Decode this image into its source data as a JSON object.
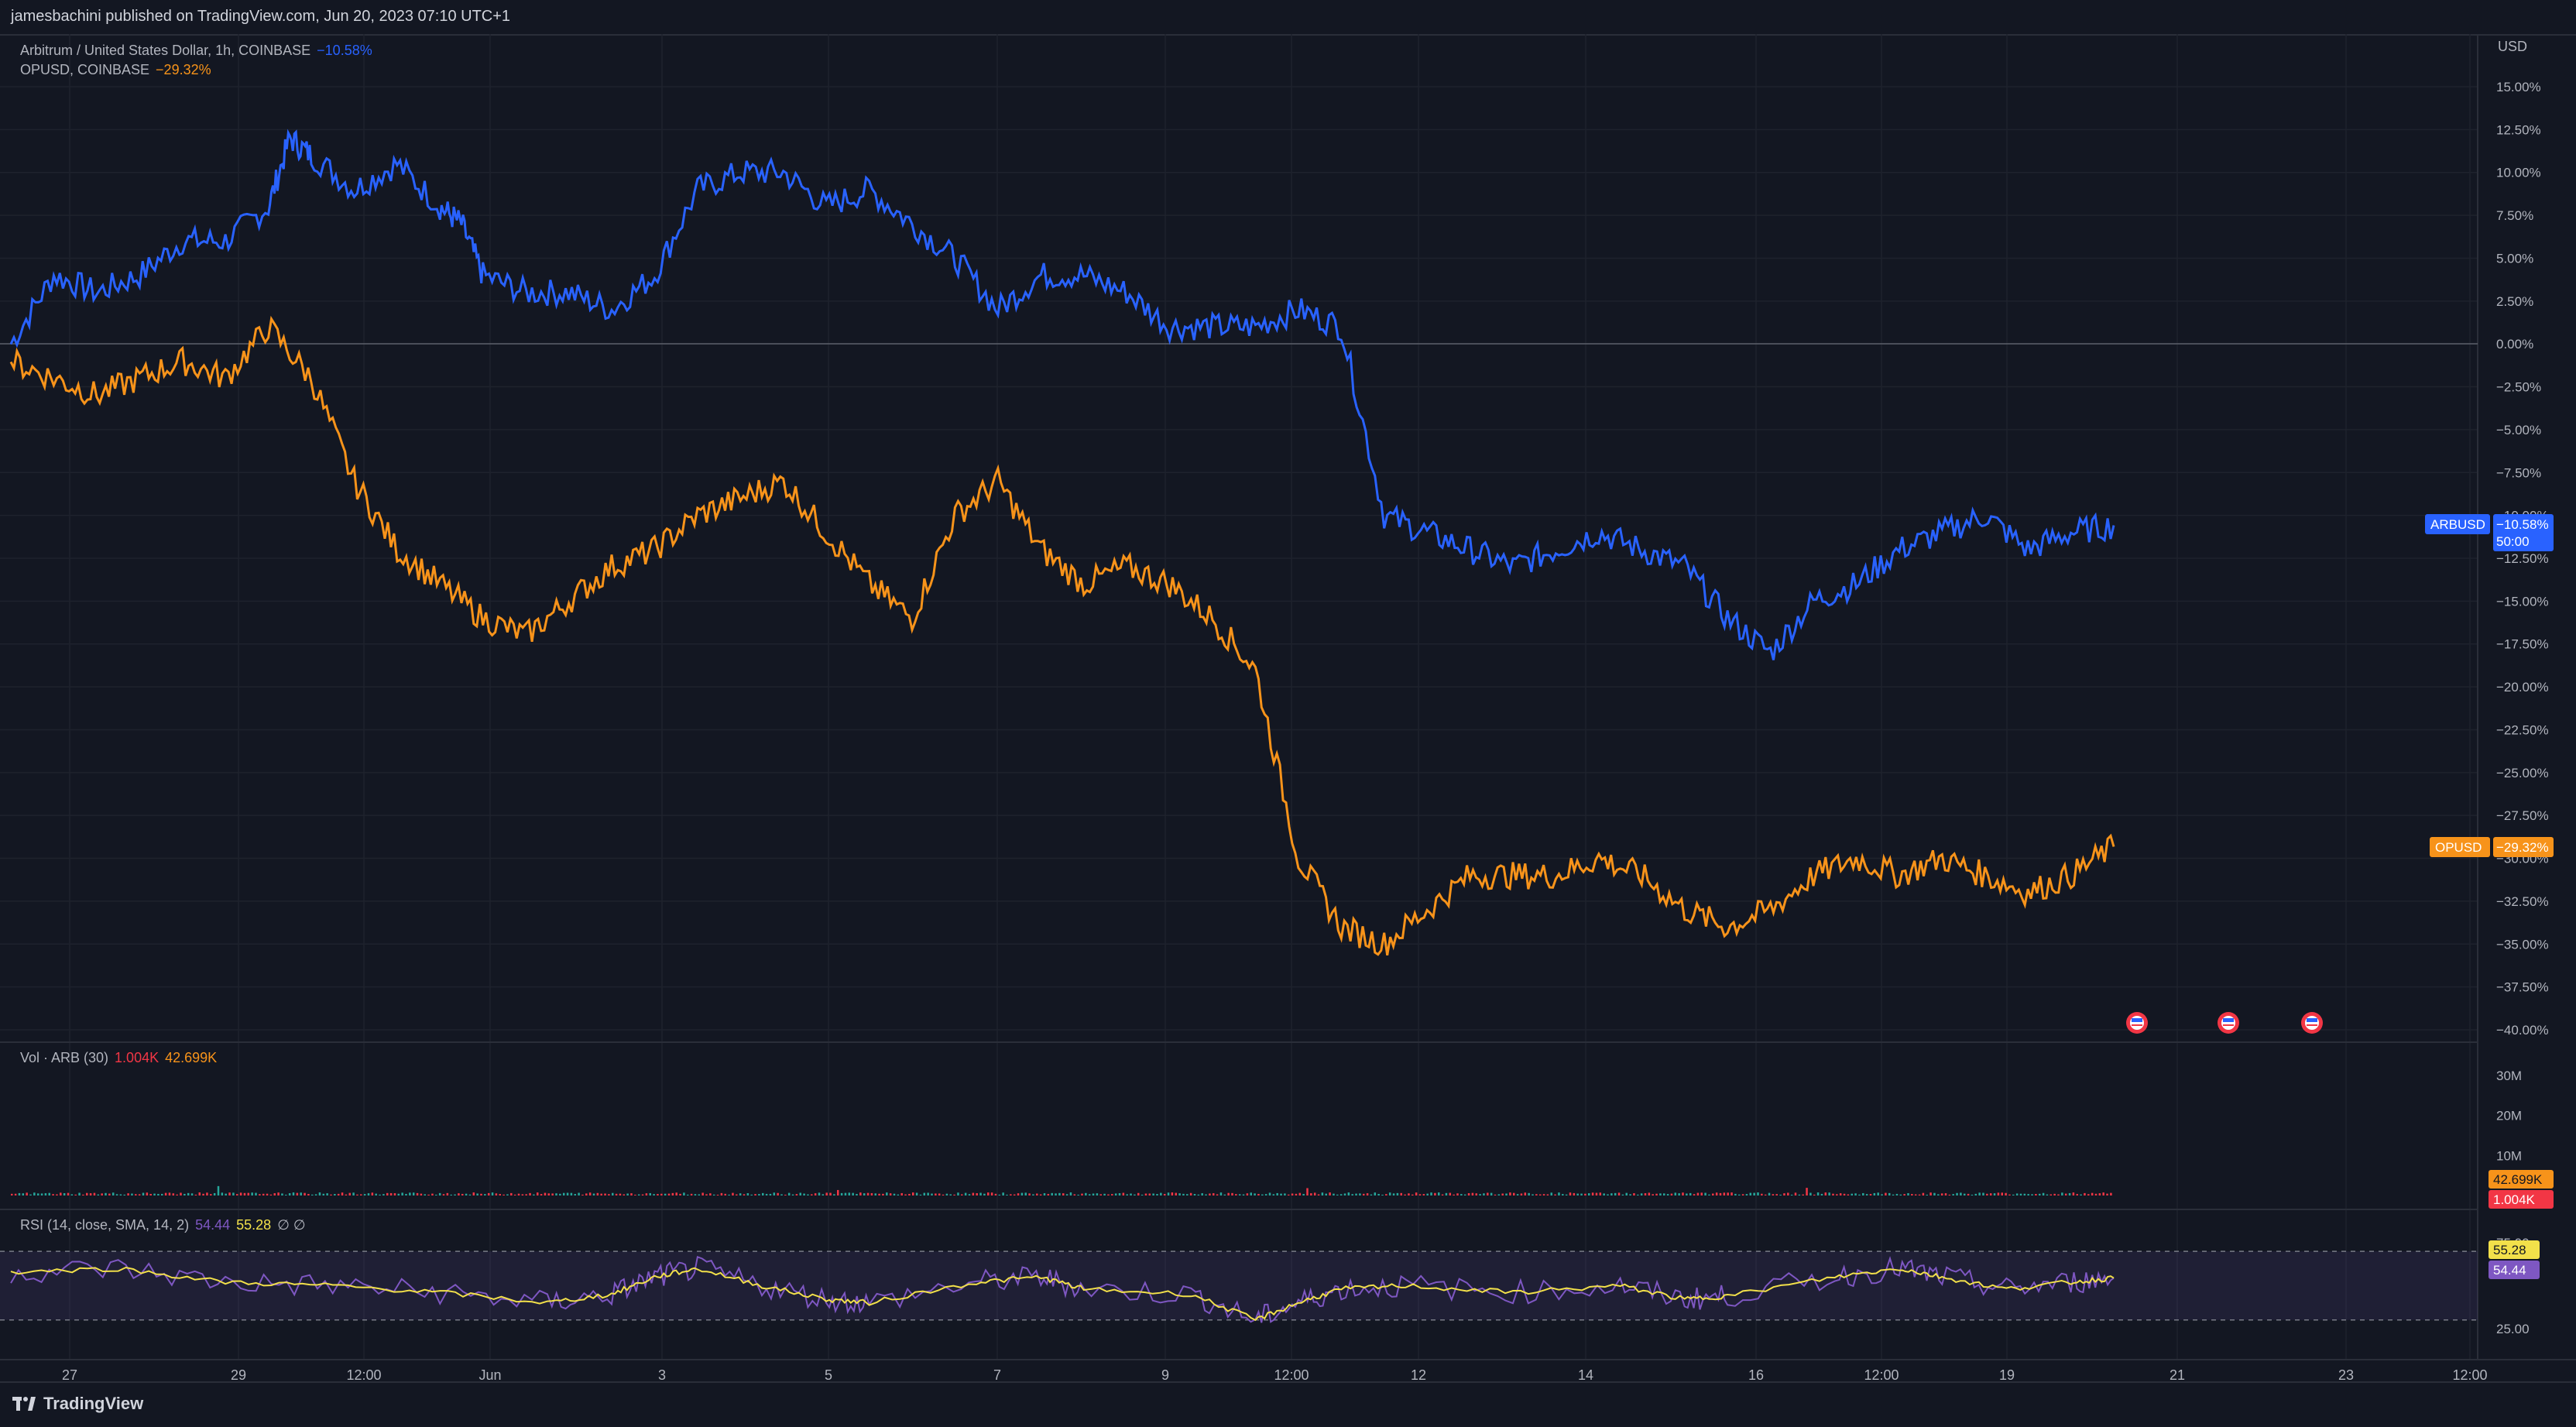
{
  "header": {
    "published": "jamesbachini published on TradingView.com, Jun 20, 2023 07:10 UTC+1"
  },
  "legend": {
    "arb": {
      "label": "Arbitrum / United States Dollar, 1h, COINBASE",
      "value": "−10.58%"
    },
    "op": {
      "label": "OPUSD, COINBASE",
      "value": "−29.32%"
    },
    "vol": {
      "label": "Vol · ARB (30)",
      "v1": "1.004K",
      "v2": "42.699K"
    },
    "rsi": {
      "label": "RSI (14, close, SMA, 14, 2)",
      "v1": "54.44",
      "v2": "55.28",
      "extra": "∅ ∅"
    }
  },
  "axis": {
    "currency": "USD",
    "ticks": [
      "15.00%",
      "12.50%",
      "10.00%",
      "7.50%",
      "5.00%",
      "2.50%",
      "0.00%",
      "−2.50%",
      "−5.00%",
      "−7.50%",
      "−10.00%",
      "−12.50%",
      "−15.00%",
      "−17.50%",
      "−20.00%",
      "−22.50%",
      "−25.00%",
      "−27.50%",
      "−30.00%",
      "−32.50%",
      "−35.00%",
      "−37.50%",
      "−40.00%"
    ],
    "vol_ticks": [
      "30M",
      "20M",
      "10M"
    ],
    "rsi_ticks": [
      "75.00",
      "25.00"
    ],
    "x_ticks": [
      "27",
      "29",
      "12:00",
      "Jun",
      "3",
      "5",
      "7",
      "9",
      "12:00",
      "12",
      "14",
      "16",
      "12:00",
      "19",
      "21",
      "23",
      "12:00"
    ]
  },
  "badges": {
    "arb": {
      "symbol": "ARBUSD",
      "value": "−10.58%",
      "countdown": "50:00"
    },
    "op": {
      "symbol": "OPUSD",
      "value": "−29.32%"
    },
    "vol_a": "42.699K",
    "vol_b": "1.004K",
    "rsi_sma": "55.28",
    "rsi": "54.44"
  },
  "footer": {
    "brand": "TradingView"
  },
  "colors": {
    "arb": "#2962ff",
    "op": "#f7931a",
    "rsi": "#7e57c2",
    "rsi_sma": "#f2e04a",
    "vol_red": "#f23645"
  },
  "chart_data": {
    "type": "line",
    "y_unit": "% change",
    "ylim": [
      -40,
      15
    ],
    "x_labels": [
      "27",
      "29",
      "12:00",
      "Jun",
      "3",
      "5",
      "7",
      "9",
      "12:00",
      "12",
      "14",
      "16",
      "12:00",
      "19",
      "21",
      "23",
      "12:00"
    ],
    "series": [
      {
        "name": "Arbitrum / United States Dollar, 1h, COINBASE",
        "keypoints": [
          [
            0,
            0
          ],
          [
            2,
            4
          ],
          [
            4,
            3
          ],
          [
            6,
            4
          ],
          [
            8,
            6
          ],
          [
            10,
            6
          ],
          [
            12,
            8
          ],
          [
            13,
            12
          ],
          [
            14,
            11
          ],
          [
            16,
            9
          ],
          [
            18,
            10.5
          ],
          [
            20,
            8
          ],
          [
            21,
            7
          ],
          [
            22,
            4
          ],
          [
            24,
            3
          ],
          [
            26,
            3
          ],
          [
            28,
            2
          ],
          [
            30,
            4
          ],
          [
            32,
            9
          ],
          [
            34,
            10
          ],
          [
            36,
            10
          ],
          [
            38,
            8
          ],
          [
            40,
            9
          ],
          [
            42,
            7
          ],
          [
            44,
            5
          ],
          [
            46,
            2
          ],
          [
            48,
            4
          ],
          [
            50,
            4
          ],
          [
            52,
            3
          ],
          [
            54,
            1
          ],
          [
            56,
            1
          ],
          [
            58,
            1
          ],
          [
            60,
            2
          ],
          [
            62,
            1
          ],
          [
            64,
            -10
          ],
          [
            66,
            -11
          ],
          [
            68,
            -12
          ],
          [
            70,
            -13
          ],
          [
            72,
            -12
          ],
          [
            74,
            -11
          ],
          [
            76,
            -12
          ],
          [
            78,
            -13
          ],
          [
            80,
            -16
          ],
          [
            82,
            -18
          ],
          [
            84,
            -15
          ],
          [
            86,
            -14
          ],
          [
            88,
            -12
          ],
          [
            90,
            -11
          ],
          [
            92,
            -10
          ],
          [
            94,
            -12
          ],
          [
            96,
            -11
          ],
          [
            98,
            -10.58
          ]
        ]
      },
      {
        "name": "OPUSD, COINBASE",
        "keypoints": [
          [
            0,
            -1
          ],
          [
            2,
            -2
          ],
          [
            4,
            -3
          ],
          [
            6,
            -2
          ],
          [
            8,
            -1
          ],
          [
            10,
            -2
          ],
          [
            12,
            1
          ],
          [
            14,
            -2
          ],
          [
            16,
            -8
          ],
          [
            18,
            -12
          ],
          [
            20,
            -14
          ],
          [
            22,
            -16
          ],
          [
            24,
            -17
          ],
          [
            26,
            -15
          ],
          [
            28,
            -13
          ],
          [
            30,
            -12
          ],
          [
            32,
            -10
          ],
          [
            34,
            -9
          ],
          [
            36,
            -8
          ],
          [
            38,
            -11
          ],
          [
            40,
            -14
          ],
          [
            42,
            -16
          ],
          [
            44,
            -10
          ],
          [
            46,
            -8
          ],
          [
            48,
            -12
          ],
          [
            50,
            -14
          ],
          [
            52,
            -13
          ],
          [
            54,
            -14
          ],
          [
            56,
            -16
          ],
          [
            58,
            -19
          ],
          [
            60,
            -30
          ],
          [
            62,
            -34
          ],
          [
            64,
            -35
          ],
          [
            66,
            -33
          ],
          [
            68,
            -31
          ],
          [
            70,
            -31
          ],
          [
            72,
            -31
          ],
          [
            74,
            -30
          ],
          [
            76,
            -31
          ],
          [
            78,
            -33
          ],
          [
            80,
            -34
          ],
          [
            82,
            -33
          ],
          [
            84,
            -31
          ],
          [
            86,
            -30
          ],
          [
            88,
            -31
          ],
          [
            90,
            -30
          ],
          [
            92,
            -31
          ],
          [
            94,
            -32
          ],
          [
            96,
            -31
          ],
          [
            98,
            -29.32
          ]
        ]
      }
    ],
    "volume_ylim": [
      0,
      30000000
    ],
    "rsi": {
      "ylim": [
        10,
        80
      ],
      "upper": 70,
      "lower": 30,
      "keypoints": [
        [
          0,
          58
        ],
        [
          5,
          60
        ],
        [
          10,
          52
        ],
        [
          15,
          50
        ],
        [
          20,
          46
        ],
        [
          25,
          40
        ],
        [
          28,
          45
        ],
        [
          30,
          55
        ],
        [
          32,
          60
        ],
        [
          35,
          50
        ],
        [
          38,
          42
        ],
        [
          40,
          40
        ],
        [
          45,
          52
        ],
        [
          48,
          55
        ],
        [
          50,
          48
        ],
        [
          55,
          45
        ],
        [
          58,
          30
        ],
        [
          60,
          40
        ],
        [
          62,
          48
        ],
        [
          65,
          50
        ],
        [
          70,
          46
        ],
        [
          75,
          50
        ],
        [
          78,
          42
        ],
        [
          80,
          44
        ],
        [
          85,
          55
        ],
        [
          88,
          60
        ],
        [
          90,
          55
        ],
        [
          93,
          48
        ],
        [
          96,
          52
        ],
        [
          98,
          54.44
        ]
      ]
    }
  }
}
